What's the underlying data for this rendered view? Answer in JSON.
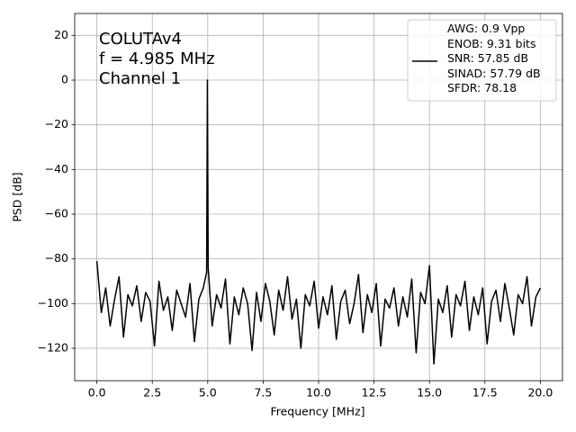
{
  "chart_data": {
    "type": "line",
    "annotation_lines": [
      "COLUTAv4",
      "f = 4.985 MHz",
      "Channel 1"
    ],
    "xlabel": "Frequency [MHz]",
    "ylabel": "PSD [dB]",
    "x": [
      0,
      0.2,
      0.4,
      0.6,
      0.8,
      1,
      1.2,
      1.4,
      1.6,
      1.8,
      2,
      2.2,
      2.4,
      2.6,
      2.8,
      3,
      3.2,
      3.4,
      3.6,
      3.8,
      4,
      4.2,
      4.4,
      4.6,
      4.8,
      4.95,
      4.985,
      5.02,
      5.2,
      5.4,
      5.6,
      5.8,
      6,
      6.2,
      6.4,
      6.6,
      6.8,
      7,
      7.2,
      7.4,
      7.6,
      7.8,
      8,
      8.2,
      8.4,
      8.6,
      8.8,
      9,
      9.2,
      9.4,
      9.6,
      9.8,
      10,
      10.2,
      10.4,
      10.6,
      10.8,
      11,
      11.2,
      11.4,
      11.6,
      11.8,
      12,
      12.2,
      12.4,
      12.6,
      12.8,
      13,
      13.2,
      13.4,
      13.6,
      13.8,
      14,
      14.2,
      14.4,
      14.6,
      14.8,
      15,
      15.2,
      15.4,
      15.6,
      15.8,
      16,
      16.2,
      16.4,
      16.6,
      16.8,
      17,
      17.2,
      17.4,
      17.6,
      17.8,
      18,
      18.2,
      18.4,
      18.6,
      18.8,
      19,
      19.2,
      19.4,
      19.6,
      19.8,
      20
    ],
    "series": [
      {
        "name": "AWG: 0.9 Vpp\nENOB: 9.31 bits\nSNR: 57.85 dB\nSINAD: 57.79 dB\nSFDR: 78.18",
        "color": "#000000",
        "values": [
          -81,
          -104,
          -93,
          -110,
          -98,
          -88,
          -115,
          -96,
          -101,
          -92,
          -108,
          -95,
          -99,
          -119,
          -90,
          -103,
          -97,
          -112,
          -94,
          -100,
          -106,
          -91,
          -117,
          -98,
          -93,
          -86,
          0,
          -84,
          -110,
          -96,
          -102,
          -89,
          -118,
          -97,
          -105,
          -93,
          -100,
          -121,
          -95,
          -108,
          -91,
          -99,
          -114,
          -94,
          -103,
          -88,
          -107,
          -98,
          -120,
          -96,
          -101,
          -90,
          -111,
          -97,
          -105,
          -92,
          -116,
          -99,
          -94,
          -109,
          -100,
          -87,
          -113,
          -96,
          -104,
          -91,
          -119,
          -98,
          -102,
          -93,
          -110,
          -97,
          -106,
          -89,
          -122,
          -95,
          -100,
          -83,
          -127,
          -98,
          -104,
          -92,
          -115,
          -96,
          -101,
          -90,
          -112,
          -97,
          -105,
          -93,
          -118,
          -99,
          -94,
          -108,
          -91,
          -102,
          -114,
          -96,
          -100,
          -88,
          -110,
          -97,
          -93
        ]
      }
    ],
    "xlim": [
      -1,
      21
    ],
    "ylim": [
      -134.5,
      29.8
    ],
    "xticks": [
      {
        "value": 0,
        "label": "0.0"
      },
      {
        "value": 2.5,
        "label": "2.5"
      },
      {
        "value": 5,
        "label": "5.0"
      },
      {
        "value": 7.5,
        "label": "7.5"
      },
      {
        "value": 10,
        "label": "10.0"
      },
      {
        "value": 12.5,
        "label": "12.5"
      },
      {
        "value": 15,
        "label": "15.0"
      },
      {
        "value": 17.5,
        "label": "17.5"
      },
      {
        "value": 20,
        "label": "20.0"
      }
    ],
    "yticks": [
      {
        "value": -120,
        "label": "−120"
      },
      {
        "value": -100,
        "label": "−100"
      },
      {
        "value": -80,
        "label": "−80"
      },
      {
        "value": -60,
        "label": "−60"
      },
      {
        "value": -40,
        "label": "−40"
      },
      {
        "value": -20,
        "label": "−20"
      },
      0,
      20
    ],
    "grid": true,
    "legend_loc": "upper right"
  }
}
